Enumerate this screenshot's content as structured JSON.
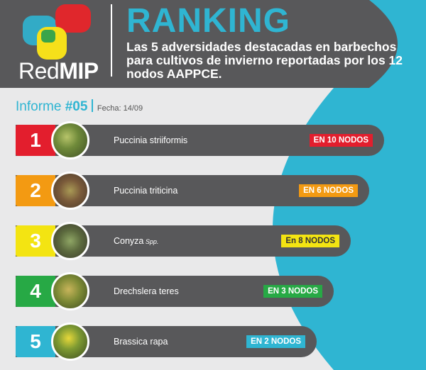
{
  "brand": {
    "name_light": "Red",
    "name_bold": "MIP"
  },
  "header": {
    "title": "RANKING",
    "subtitle": "Las 5 adversidades destacadas en barbechos para cultivos de invierno reportadas por los 12 nodos AAPPCE."
  },
  "report": {
    "label": "Informe",
    "number": "#05",
    "date": "Fecha: 14/09"
  },
  "ranking": [
    {
      "rank": "1",
      "name": "Puccinia striiformis",
      "qualifier": "",
      "badge": "EN 10 NODOS",
      "color": "#e31e2d"
    },
    {
      "rank": "2",
      "name": "Puccinia triticina",
      "qualifier": "",
      "badge": "EN 6 NODOS",
      "color": "#f39a12"
    },
    {
      "rank": "3",
      "name": "Conyza",
      "qualifier": "Spp.",
      "badge": "En 8 NODOS",
      "color": "#f3e412"
    },
    {
      "rank": "4",
      "name": "Drechslera teres",
      "qualifier": "",
      "badge": "EN 3 NODOS",
      "color": "#27a945"
    },
    {
      "rank": "5",
      "name": "Brassica rapa",
      "qualifier": "",
      "badge": "EN 2 NODOS",
      "color": "#2fb5d2"
    }
  ],
  "colors": {
    "background": "#2fb5d2",
    "header": "#58585a",
    "panel": "#e9e9ea"
  }
}
